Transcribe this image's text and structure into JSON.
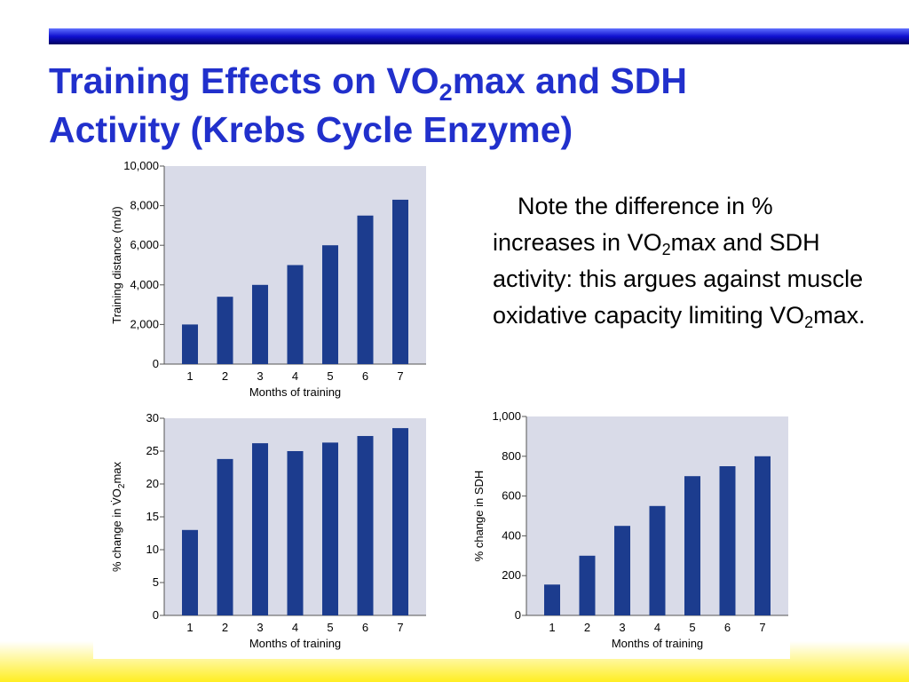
{
  "slide": {
    "title": [
      "Training Effects on VO",
      "2",
      "max and SDH",
      "Activity (Krebs Cycle Enzyme)"
    ],
    "note": [
      "Note the difference in % increases in VO",
      "2",
      "max and SDH activity: this argues against muscle oxidative capacity limiting VO",
      "2",
      "max."
    ]
  },
  "chart_data": [
    {
      "type": "bar",
      "ylabel": [
        "Training distance (m/d)"
      ],
      "xlabel": "Months of training",
      "categories": [
        "1",
        "2",
        "3",
        "4",
        "5",
        "6",
        "7"
      ],
      "values": [
        2000,
        3400,
        4000,
        5000,
        6000,
        7500,
        8300
      ],
      "color": "#1c3c8e",
      "ylim": [
        0,
        10000
      ],
      "yticks": [
        0,
        {
          "value": 2000,
          "label": "2,000"
        },
        {
          "value": 4000,
          "label": "4,000"
        },
        {
          "value": 6000,
          "label": "6,000"
        },
        {
          "value": 8000,
          "label": "8,000"
        },
        {
          "value": 10000,
          "label": "10,000"
        }
      ]
    },
    {
      "type": "bar",
      "ylabel": [
        "% change in V̇O",
        "2",
        "max"
      ],
      "xlabel": "Months of training",
      "categories": [
        "1",
        "2",
        "3",
        "4",
        "5",
        "6",
        "7"
      ],
      "values": [
        13,
        23.8,
        26.2,
        25,
        26.3,
        27.3,
        28.5
      ],
      "color": "#1c3c8e",
      "ylim": [
        0,
        30
      ],
      "yticks": [
        0,
        5,
        10,
        15,
        20,
        25,
        30
      ]
    },
    {
      "type": "bar",
      "ylabel": [
        "% change in SDH"
      ],
      "xlabel": "Months of training",
      "categories": [
        "1",
        "2",
        "3",
        "4",
        "5",
        "6",
        "7"
      ],
      "values": [
        155,
        300,
        450,
        550,
        700,
        750,
        800
      ],
      "color": "#1c3c8e",
      "ylim": [
        0,
        1000
      ],
      "yticks": [
        0,
        200,
        400,
        600,
        800,
        {
          "value": 1000,
          "label": "1,000"
        }
      ]
    }
  ]
}
